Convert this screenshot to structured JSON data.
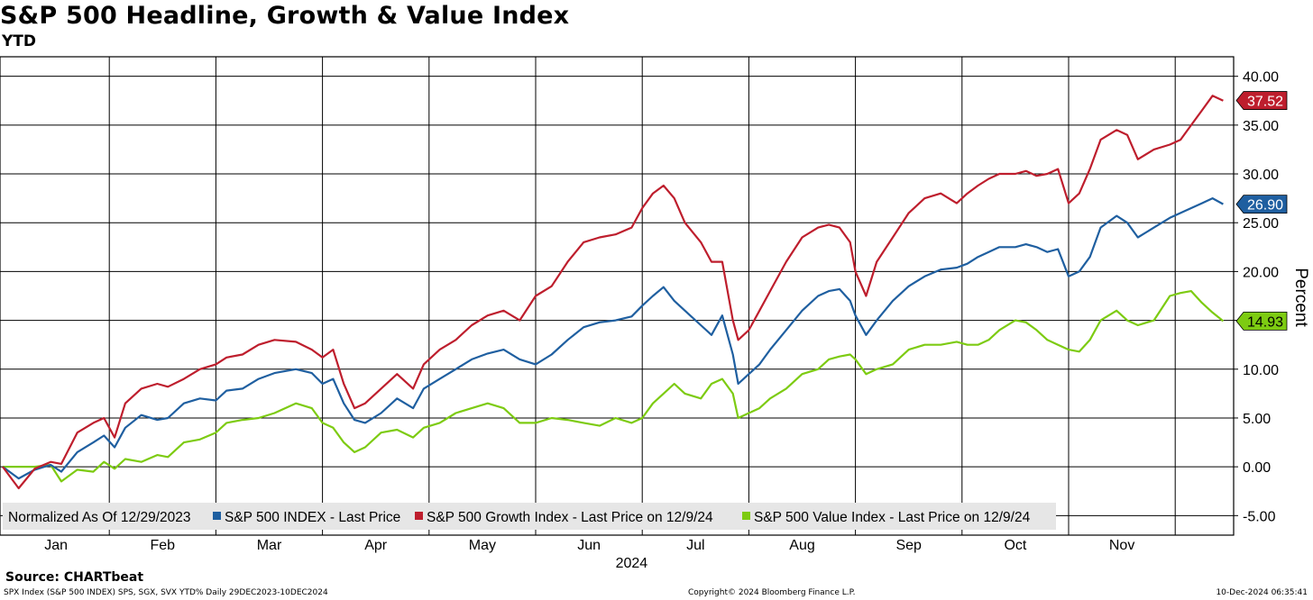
{
  "title": "S&P 500 Headline, Growth & Value Index",
  "subtitle": "YTD",
  "source": "Source: CHARTbeat",
  "footer": {
    "left": "SPX Index (S&P 500 INDEX) SPS, SGX, SVX YTD% Daily 29DEC2023-10DEC2024",
    "middle": "Copyright© 2024 Bloomberg Finance L.P.",
    "right": "10-Dec-2024 06:35:41"
  },
  "colors": {
    "spx": "#1f5fa0",
    "growth": "#be1e2d",
    "value": "#7dcb12",
    "grid": "#000000"
  },
  "chart_data": {
    "type": "line",
    "title": "S&P 500 Headline, Growth & Value Index",
    "subtitle": "YTD",
    "ylabel": "Percent",
    "xlabel": "2024",
    "ylim": [
      -7,
      42
    ],
    "y_ticks": [
      "40.00",
      "35.00",
      "30.00",
      "25.00",
      "20.00",
      "15.00",
      "10.00",
      "5.00",
      "0.00",
      "-5.00"
    ],
    "months": [
      "Jan",
      "Feb",
      "Mar",
      "Apr",
      "May",
      "Jun",
      "Jul",
      "Aug",
      "Sep",
      "Oct",
      "Nov"
    ],
    "legend_title": "Normalized As Of 12/29/2023",
    "grid": true,
    "x_unit": "month index (0 = 29 Dec 2023, 1 = end of Jan, ...)",
    "series": [
      {
        "name": "S&P 500 INDEX - Last Price",
        "color": "#1f5fa0",
        "last_value": "26.90",
        "points": [
          [
            0,
            0
          ],
          [
            0.15,
            -1.2
          ],
          [
            0.3,
            -0.3
          ],
          [
            0.45,
            0.2
          ],
          [
            0.55,
            -0.5
          ],
          [
            0.7,
            1.5
          ],
          [
            0.85,
            2.5
          ],
          [
            0.95,
            3.2
          ],
          [
            1.05,
            2.0
          ],
          [
            1.15,
            4.0
          ],
          [
            1.3,
            5.3
          ],
          [
            1.45,
            4.8
          ],
          [
            1.55,
            5.0
          ],
          [
            1.7,
            6.5
          ],
          [
            1.85,
            7.0
          ],
          [
            2.0,
            6.8
          ],
          [
            2.1,
            7.8
          ],
          [
            2.25,
            8.0
          ],
          [
            2.4,
            9.0
          ],
          [
            2.55,
            9.6
          ],
          [
            2.75,
            10.0
          ],
          [
            2.9,
            9.6
          ],
          [
            3.0,
            8.5
          ],
          [
            3.1,
            9.0
          ],
          [
            3.2,
            6.5
          ],
          [
            3.3,
            4.8
          ],
          [
            3.4,
            4.5
          ],
          [
            3.55,
            5.5
          ],
          [
            3.7,
            7.0
          ],
          [
            3.85,
            6.0
          ],
          [
            3.95,
            8.0
          ],
          [
            4.1,
            9.0
          ],
          [
            4.25,
            10.0
          ],
          [
            4.4,
            11.0
          ],
          [
            4.55,
            11.6
          ],
          [
            4.7,
            12.0
          ],
          [
            4.85,
            11.0
          ],
          [
            5.0,
            10.5
          ],
          [
            5.15,
            11.5
          ],
          [
            5.3,
            13.0
          ],
          [
            5.45,
            14.3
          ],
          [
            5.6,
            14.8
          ],
          [
            5.75,
            15.0
          ],
          [
            5.9,
            15.4
          ],
          [
            6.0,
            16.5
          ],
          [
            6.1,
            17.5
          ],
          [
            6.2,
            18.4
          ],
          [
            6.3,
            17.0
          ],
          [
            6.4,
            16.0
          ],
          [
            6.55,
            14.5
          ],
          [
            6.65,
            13.5
          ],
          [
            6.75,
            15.5
          ],
          [
            6.85,
            11.5
          ],
          [
            6.9,
            8.5
          ],
          [
            7.0,
            9.5
          ],
          [
            7.1,
            10.5
          ],
          [
            7.2,
            12.0
          ],
          [
            7.35,
            14.0
          ],
          [
            7.5,
            16.0
          ],
          [
            7.65,
            17.5
          ],
          [
            7.75,
            18.0
          ],
          [
            7.85,
            18.2
          ],
          [
            7.95,
            17.0
          ],
          [
            8.0,
            15.5
          ],
          [
            8.1,
            13.5
          ],
          [
            8.2,
            15.0
          ],
          [
            8.35,
            17.0
          ],
          [
            8.5,
            18.5
          ],
          [
            8.65,
            19.5
          ],
          [
            8.8,
            20.2
          ],
          [
            8.95,
            20.4
          ],
          [
            9.05,
            20.8
          ],
          [
            9.15,
            21.5
          ],
          [
            9.25,
            22.0
          ],
          [
            9.35,
            22.5
          ],
          [
            9.5,
            22.5
          ],
          [
            9.6,
            22.8
          ],
          [
            9.7,
            22.5
          ],
          [
            9.8,
            22.0
          ],
          [
            9.9,
            22.3
          ],
          [
            10.0,
            19.5
          ],
          [
            10.1,
            20.0
          ],
          [
            10.2,
            21.5
          ],
          [
            10.3,
            24.5
          ],
          [
            10.45,
            25.7
          ],
          [
            10.55,
            25.0
          ],
          [
            10.65,
            23.5
          ],
          [
            10.8,
            24.5
          ],
          [
            10.95,
            25.5
          ],
          [
            11.05,
            26.0
          ],
          [
            11.15,
            26.5
          ],
          [
            11.25,
            27.0
          ],
          [
            11.35,
            27.5
          ],
          [
            11.45,
            26.9
          ]
        ]
      },
      {
        "name": "S&P 500 Growth Index - Last Price on 12/9/24",
        "color": "#be1e2d",
        "last_value": "37.52",
        "points": [
          [
            0,
            0
          ],
          [
            0.15,
            -2.2
          ],
          [
            0.3,
            -0.2
          ],
          [
            0.45,
            0.5
          ],
          [
            0.55,
            0.3
          ],
          [
            0.7,
            3.5
          ],
          [
            0.85,
            4.5
          ],
          [
            0.95,
            5.0
          ],
          [
            1.05,
            3.0
          ],
          [
            1.15,
            6.5
          ],
          [
            1.3,
            8.0
          ],
          [
            1.45,
            8.5
          ],
          [
            1.55,
            8.2
          ],
          [
            1.7,
            9.0
          ],
          [
            1.85,
            10.0
          ],
          [
            2.0,
            10.5
          ],
          [
            2.1,
            11.2
          ],
          [
            2.25,
            11.5
          ],
          [
            2.4,
            12.5
          ],
          [
            2.55,
            13.0
          ],
          [
            2.75,
            12.8
          ],
          [
            2.9,
            12.0
          ],
          [
            3.0,
            11.2
          ],
          [
            3.1,
            12.0
          ],
          [
            3.2,
            8.5
          ],
          [
            3.3,
            6.0
          ],
          [
            3.4,
            6.5
          ],
          [
            3.55,
            8.0
          ],
          [
            3.7,
            9.5
          ],
          [
            3.85,
            8.0
          ],
          [
            3.95,
            10.5
          ],
          [
            4.1,
            12.0
          ],
          [
            4.25,
            13.0
          ],
          [
            4.4,
            14.5
          ],
          [
            4.55,
            15.5
          ],
          [
            4.7,
            16.0
          ],
          [
            4.85,
            15.0
          ],
          [
            5.0,
            17.5
          ],
          [
            5.15,
            18.5
          ],
          [
            5.3,
            21.0
          ],
          [
            5.45,
            23.0
          ],
          [
            5.6,
            23.5
          ],
          [
            5.75,
            23.8
          ],
          [
            5.9,
            24.5
          ],
          [
            6.0,
            26.5
          ],
          [
            6.1,
            28.0
          ],
          [
            6.2,
            28.8
          ],
          [
            6.3,
            27.5
          ],
          [
            6.4,
            25.0
          ],
          [
            6.55,
            23.0
          ],
          [
            6.65,
            21.0
          ],
          [
            6.75,
            21.0
          ],
          [
            6.85,
            15.0
          ],
          [
            6.9,
            13.0
          ],
          [
            7.0,
            14.0
          ],
          [
            7.1,
            16.0
          ],
          [
            7.2,
            18.0
          ],
          [
            7.35,
            21.0
          ],
          [
            7.5,
            23.5
          ],
          [
            7.65,
            24.5
          ],
          [
            7.75,
            24.8
          ],
          [
            7.85,
            24.5
          ],
          [
            7.95,
            23.0
          ],
          [
            8.0,
            20.0
          ],
          [
            8.1,
            17.5
          ],
          [
            8.2,
            21.0
          ],
          [
            8.35,
            23.5
          ],
          [
            8.5,
            26.0
          ],
          [
            8.65,
            27.5
          ],
          [
            8.8,
            28.0
          ],
          [
            8.95,
            27.0
          ],
          [
            9.05,
            28.0
          ],
          [
            9.15,
            28.8
          ],
          [
            9.25,
            29.5
          ],
          [
            9.35,
            30.0
          ],
          [
            9.5,
            30.0
          ],
          [
            9.6,
            30.3
          ],
          [
            9.7,
            29.8
          ],
          [
            9.8,
            30.0
          ],
          [
            9.9,
            30.5
          ],
          [
            10.0,
            27.0
          ],
          [
            10.1,
            28.0
          ],
          [
            10.2,
            30.5
          ],
          [
            10.3,
            33.5
          ],
          [
            10.45,
            34.5
          ],
          [
            10.55,
            34.0
          ],
          [
            10.65,
            31.5
          ],
          [
            10.8,
            32.5
          ],
          [
            10.95,
            33.0
          ],
          [
            11.05,
            33.5
          ],
          [
            11.15,
            35.0
          ],
          [
            11.25,
            36.5
          ],
          [
            11.35,
            38.0
          ],
          [
            11.45,
            37.5
          ]
        ]
      },
      {
        "name": "S&P 500 Value Index - Last Price on 12/9/24",
        "color": "#7dcb12",
        "last_value": "14.93",
        "points": [
          [
            0,
            0
          ],
          [
            0.15,
            0
          ],
          [
            0.3,
            0
          ],
          [
            0.45,
            0.2
          ],
          [
            0.55,
            -1.5
          ],
          [
            0.7,
            -0.3
          ],
          [
            0.85,
            -0.5
          ],
          [
            0.95,
            0.5
          ],
          [
            1.05,
            -0.2
          ],
          [
            1.15,
            0.8
          ],
          [
            1.3,
            0.5
          ],
          [
            1.45,
            1.2
          ],
          [
            1.55,
            1.0
          ],
          [
            1.7,
            2.5
          ],
          [
            1.85,
            2.8
          ],
          [
            2.0,
            3.5
          ],
          [
            2.1,
            4.5
          ],
          [
            2.25,
            4.8
          ],
          [
            2.4,
            5.0
          ],
          [
            2.55,
            5.5
          ],
          [
            2.75,
            6.5
          ],
          [
            2.9,
            6.0
          ],
          [
            3.0,
            4.5
          ],
          [
            3.1,
            4.0
          ],
          [
            3.2,
            2.5
          ],
          [
            3.3,
            1.5
          ],
          [
            3.4,
            2.0
          ],
          [
            3.55,
            3.5
          ],
          [
            3.7,
            3.8
          ],
          [
            3.85,
            3.0
          ],
          [
            3.95,
            4.0
          ],
          [
            4.1,
            4.5
          ],
          [
            4.25,
            5.5
          ],
          [
            4.4,
            6.0
          ],
          [
            4.55,
            6.5
          ],
          [
            4.7,
            6.0
          ],
          [
            4.85,
            4.5
          ],
          [
            5.0,
            4.5
          ],
          [
            5.15,
            5.0
          ],
          [
            5.3,
            4.8
          ],
          [
            5.45,
            4.5
          ],
          [
            5.6,
            4.2
          ],
          [
            5.75,
            5.0
          ],
          [
            5.9,
            4.5
          ],
          [
            6.0,
            5.0
          ],
          [
            6.1,
            6.5
          ],
          [
            6.2,
            7.5
          ],
          [
            6.3,
            8.5
          ],
          [
            6.4,
            7.5
          ],
          [
            6.55,
            7.0
          ],
          [
            6.65,
            8.5
          ],
          [
            6.75,
            9.0
          ],
          [
            6.85,
            7.5
          ],
          [
            6.9,
            5.0
          ],
          [
            7.0,
            5.5
          ],
          [
            7.1,
            6.0
          ],
          [
            7.2,
            7.0
          ],
          [
            7.35,
            8.0
          ],
          [
            7.5,
            9.5
          ],
          [
            7.65,
            10.0
          ],
          [
            7.75,
            11.0
          ],
          [
            7.85,
            11.3
          ],
          [
            7.95,
            11.5
          ],
          [
            8.0,
            11.0
          ],
          [
            8.1,
            9.5
          ],
          [
            8.2,
            10.0
          ],
          [
            8.35,
            10.5
          ],
          [
            8.5,
            12.0
          ],
          [
            8.65,
            12.5
          ],
          [
            8.8,
            12.5
          ],
          [
            8.95,
            12.8
          ],
          [
            9.05,
            12.5
          ],
          [
            9.15,
            12.5
          ],
          [
            9.25,
            13.0
          ],
          [
            9.35,
            14.0
          ],
          [
            9.5,
            15.0
          ],
          [
            9.6,
            14.8
          ],
          [
            9.7,
            14.0
          ],
          [
            9.8,
            13.0
          ],
          [
            9.9,
            12.5
          ],
          [
            10.0,
            12.0
          ],
          [
            10.1,
            11.8
          ],
          [
            10.2,
            13.0
          ],
          [
            10.3,
            15.0
          ],
          [
            10.45,
            16.0
          ],
          [
            10.55,
            15.0
          ],
          [
            10.65,
            14.5
          ],
          [
            10.8,
            15.0
          ],
          [
            10.95,
            17.5
          ],
          [
            11.05,
            17.8
          ],
          [
            11.15,
            18.0
          ],
          [
            11.25,
            16.8
          ],
          [
            11.35,
            15.8
          ],
          [
            11.45,
            14.93
          ]
        ]
      }
    ]
  }
}
